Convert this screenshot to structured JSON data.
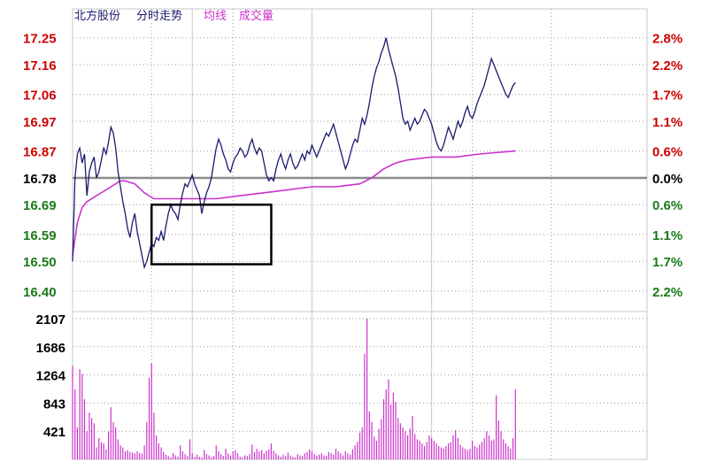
{
  "title": {
    "stock": "北方股份",
    "chart": "分时走势",
    "avg_legend": "均线",
    "vol_legend": "成交量"
  },
  "colors": {
    "background": "#ffffff",
    "price_line": "#1a1a6e",
    "avg_line": "#cc33cc",
    "volume_bar": "#cc33cc",
    "up_text": "#cc0000",
    "down_text": "#1a7a1a",
    "flat_text": "#000000",
    "grid_solid": "#c8c8c8",
    "grid_dotted": "#999999",
    "axis": "#000000",
    "highlight_box": "#000000"
  },
  "chart_data": {
    "type": "line",
    "x_range": [
      0,
      240
    ],
    "price_axis": {
      "ylim": [
        16.355,
        17.27
      ],
      "ticks": [
        {
          "label": "17.25",
          "value": 17.25,
          "tone": "up"
        },
        {
          "label": "17.16",
          "value": 17.16,
          "tone": "up"
        },
        {
          "label": "17.06",
          "value": 17.06,
          "tone": "up"
        },
        {
          "label": "16.97",
          "value": 16.97,
          "tone": "up"
        },
        {
          "label": "16.87",
          "value": 16.87,
          "tone": "up"
        },
        {
          "label": "16.78",
          "value": 16.78,
          "tone": "flat"
        },
        {
          "label": "16.69",
          "value": 16.69,
          "tone": "down"
        },
        {
          "label": "16.59",
          "value": 16.59,
          "tone": "down"
        },
        {
          "label": "16.50",
          "value": 16.5,
          "tone": "down"
        },
        {
          "label": "16.40",
          "value": 16.4,
          "tone": "down"
        }
      ],
      "pct_ticks": [
        {
          "label": "2.8%",
          "value": 17.25,
          "tone": "up"
        },
        {
          "label": "2.2%",
          "value": 17.16,
          "tone": "up"
        },
        {
          "label": "1.7%",
          "value": 17.06,
          "tone": "up"
        },
        {
          "label": "1.1%",
          "value": 16.97,
          "tone": "up"
        },
        {
          "label": "0.6%",
          "value": 16.87,
          "tone": "up"
        },
        {
          "label": "0.0%",
          "value": 16.78,
          "tone": "flat"
        },
        {
          "label": "0.6%",
          "value": 16.69,
          "tone": "down"
        },
        {
          "label": "1.1%",
          "value": 16.59,
          "tone": "down"
        },
        {
          "label": "1.7%",
          "value": 16.5,
          "tone": "down"
        },
        {
          "label": "2.2%",
          "value": 16.4,
          "tone": "down"
        }
      ],
      "baseline": 16.78
    },
    "volume_axis": {
      "ylim": [
        0,
        2107
      ],
      "ticks": [
        {
          "label": "2107",
          "value": 2107
        },
        {
          "label": "1686",
          "value": 1686
        },
        {
          "label": "1264",
          "value": 1264
        },
        {
          "label": "843",
          "value": 843
        },
        {
          "label": "421",
          "value": 421
        }
      ]
    },
    "price_series": {
      "name": "",
      "points": [
        [
          0,
          16.5
        ],
        [
          1,
          16.78
        ],
        [
          2,
          16.86
        ],
        [
          3,
          16.88
        ],
        [
          4,
          16.83
        ],
        [
          5,
          16.86
        ],
        [
          6,
          16.72
        ],
        [
          7,
          16.8
        ],
        [
          8,
          16.83
        ],
        [
          9,
          16.85
        ],
        [
          10,
          16.78
        ],
        [
          11,
          16.8
        ],
        [
          12,
          16.84
        ],
        [
          13,
          16.88
        ],
        [
          14,
          16.86
        ],
        [
          15,
          16.9
        ],
        [
          16,
          16.95
        ],
        [
          17,
          16.93
        ],
        [
          18,
          16.88
        ],
        [
          19,
          16.8
        ],
        [
          20,
          16.75
        ],
        [
          21,
          16.7
        ],
        [
          22,
          16.66
        ],
        [
          23,
          16.61
        ],
        [
          24,
          16.58
        ],
        [
          25,
          16.63
        ],
        [
          26,
          16.66
        ],
        [
          27,
          16.6
        ],
        [
          28,
          16.56
        ],
        [
          29,
          16.52
        ],
        [
          30,
          16.48
        ],
        [
          31,
          16.5
        ],
        [
          32,
          16.53
        ],
        [
          33,
          16.56
        ],
        [
          34,
          16.55
        ],
        [
          35,
          16.58
        ],
        [
          36,
          16.57
        ],
        [
          37,
          16.6
        ],
        [
          38,
          16.57
        ],
        [
          39,
          16.62
        ],
        [
          40,
          16.66
        ],
        [
          41,
          16.69
        ],
        [
          42,
          16.67
        ],
        [
          43,
          16.66
        ],
        [
          44,
          16.64
        ],
        [
          45,
          16.69
        ],
        [
          46,
          16.73
        ],
        [
          47,
          16.76
        ],
        [
          48,
          16.75
        ],
        [
          49,
          16.77
        ],
        [
          50,
          16.79
        ],
        [
          51,
          16.76
        ],
        [
          52,
          16.74
        ],
        [
          53,
          16.72
        ],
        [
          54,
          16.66
        ],
        [
          55,
          16.7
        ],
        [
          56,
          16.73
        ],
        [
          57,
          16.75
        ],
        [
          58,
          16.78
        ],
        [
          59,
          16.83
        ],
        [
          60,
          16.88
        ],
        [
          61,
          16.91
        ],
        [
          62,
          16.89
        ],
        [
          63,
          16.86
        ],
        [
          64,
          16.84
        ],
        [
          65,
          16.81
        ],
        [
          66,
          16.8
        ],
        [
          67,
          16.83
        ],
        [
          68,
          16.85
        ],
        [
          69,
          16.86
        ],
        [
          70,
          16.88
        ],
        [
          71,
          16.87
        ],
        [
          72,
          16.85
        ],
        [
          73,
          16.86
        ],
        [
          74,
          16.89
        ],
        [
          75,
          16.91
        ],
        [
          76,
          16.88
        ],
        [
          77,
          16.86
        ],
        [
          78,
          16.88
        ],
        [
          79,
          16.87
        ],
        [
          80,
          16.83
        ],
        [
          81,
          16.79
        ],
        [
          82,
          16.77
        ],
        [
          83,
          16.78
        ],
        [
          84,
          16.77
        ],
        [
          85,
          16.81
        ],
        [
          86,
          16.84
        ],
        [
          87,
          16.86
        ],
        [
          88,
          16.83
        ],
        [
          89,
          16.81
        ],
        [
          90,
          16.84
        ],
        [
          91,
          16.86
        ],
        [
          92,
          16.83
        ],
        [
          93,
          16.81
        ],
        [
          94,
          16.82
        ],
        [
          95,
          16.84
        ],
        [
          96,
          16.86
        ],
        [
          97,
          16.84
        ],
        [
          98,
          16.87
        ],
        [
          99,
          16.86
        ],
        [
          100,
          16.89
        ],
        [
          101,
          16.87
        ],
        [
          102,
          16.85
        ],
        [
          103,
          16.87
        ],
        [
          104,
          16.89
        ],
        [
          105,
          16.91
        ],
        [
          106,
          16.93
        ],
        [
          107,
          16.92
        ],
        [
          108,
          16.94
        ],
        [
          109,
          16.96
        ],
        [
          110,
          16.93
        ],
        [
          111,
          16.9
        ],
        [
          112,
          16.87
        ],
        [
          113,
          16.84
        ],
        [
          114,
          16.81
        ],
        [
          115,
          16.83
        ],
        [
          116,
          16.86
        ],
        [
          117,
          16.89
        ],
        [
          118,
          16.91
        ],
        [
          119,
          16.9
        ],
        [
          120,
          16.94
        ],
        [
          121,
          16.98
        ],
        [
          122,
          16.96
        ],
        [
          123,
          16.99
        ],
        [
          124,
          17.03
        ],
        [
          125,
          17.08
        ],
        [
          126,
          17.12
        ],
        [
          127,
          17.15
        ],
        [
          128,
          17.17
        ],
        [
          129,
          17.2
        ],
        [
          130,
          17.22
        ],
        [
          131,
          17.25
        ],
        [
          132,
          17.21
        ],
        [
          133,
          17.18
        ],
        [
          134,
          17.15
        ],
        [
          135,
          17.12
        ],
        [
          136,
          17.08
        ],
        [
          137,
          17.03
        ],
        [
          138,
          16.98
        ],
        [
          139,
          16.96
        ],
        [
          140,
          16.97
        ],
        [
          141,
          16.94
        ],
        [
          142,
          16.96
        ],
        [
          143,
          16.98
        ],
        [
          144,
          16.96
        ],
        [
          145,
          16.97
        ],
        [
          146,
          16.99
        ],
        [
          147,
          17.01
        ],
        [
          148,
          17.0
        ],
        [
          149,
          16.98
        ],
        [
          150,
          16.96
        ],
        [
          151,
          16.93
        ],
        [
          152,
          16.9
        ],
        [
          153,
          16.88
        ],
        [
          154,
          16.87
        ],
        [
          155,
          16.89
        ],
        [
          156,
          16.92
        ],
        [
          157,
          16.95
        ],
        [
          158,
          16.93
        ],
        [
          159,
          16.91
        ],
        [
          160,
          16.94
        ],
        [
          161,
          16.97
        ],
        [
          162,
          16.95
        ],
        [
          163,
          16.97
        ],
        [
          164,
          17.0
        ],
        [
          165,
          17.02
        ],
        [
          166,
          16.99
        ],
        [
          167,
          16.98
        ],
        [
          168,
          17.0
        ],
        [
          169,
          17.03
        ],
        [
          170,
          17.05
        ],
        [
          171,
          17.07
        ],
        [
          172,
          17.09
        ],
        [
          173,
          17.12
        ],
        [
          174,
          17.15
        ],
        [
          175,
          17.18
        ],
        [
          176,
          17.16
        ],
        [
          177,
          17.14
        ],
        [
          178,
          17.12
        ],
        [
          179,
          17.1
        ],
        [
          180,
          17.08
        ],
        [
          181,
          17.06
        ],
        [
          182,
          17.05
        ],
        [
          183,
          17.07
        ],
        [
          184,
          17.09
        ],
        [
          185,
          17.1
        ]
      ]
    },
    "avg_series": {
      "name": "均线",
      "points": [
        [
          0,
          16.52
        ],
        [
          2,
          16.63
        ],
        [
          4,
          16.68
        ],
        [
          6,
          16.7
        ],
        [
          10,
          16.72
        ],
        [
          14,
          16.74
        ],
        [
          18,
          16.76
        ],
        [
          20,
          16.77
        ],
        [
          22,
          16.77
        ],
        [
          26,
          16.76
        ],
        [
          30,
          16.73
        ],
        [
          34,
          16.71
        ],
        [
          36,
          16.71
        ],
        [
          40,
          16.71
        ],
        [
          50,
          16.71
        ],
        [
          60,
          16.71
        ],
        [
          70,
          16.72
        ],
        [
          80,
          16.73
        ],
        [
          90,
          16.74
        ],
        [
          100,
          16.75
        ],
        [
          110,
          16.75
        ],
        [
          120,
          16.76
        ],
        [
          125,
          16.78
        ],
        [
          130,
          16.81
        ],
        [
          135,
          16.83
        ],
        [
          140,
          16.84
        ],
        [
          150,
          16.85
        ],
        [
          160,
          16.85
        ],
        [
          170,
          16.86
        ],
        [
          185,
          16.87
        ]
      ]
    },
    "volume_series": {
      "name": "成交量",
      "values": [
        1400,
        1050,
        480,
        1350,
        1280,
        900,
        420,
        700,
        620,
        540,
        180,
        320,
        260,
        240,
        150,
        420,
        780,
        560,
        480,
        300,
        210,
        180,
        120,
        140,
        110,
        100,
        90,
        120,
        95,
        85,
        210,
        560,
        1220,
        1440,
        700,
        360,
        240,
        180,
        110,
        70,
        50,
        30,
        90,
        60,
        40,
        210,
        120,
        80,
        50,
        300,
        90,
        40,
        70,
        40,
        30,
        140,
        80,
        60,
        30,
        50,
        210,
        120,
        80,
        50,
        160,
        90,
        60,
        120,
        140,
        90,
        40,
        30,
        60,
        50,
        80,
        220,
        110,
        160,
        120,
        140,
        90,
        130,
        150,
        240,
        130,
        90,
        60,
        40,
        70,
        50,
        100,
        60,
        40,
        30,
        80,
        60,
        50,
        90,
        110,
        150,
        120,
        80,
        60,
        70,
        90,
        60,
        50,
        110,
        90,
        70,
        160,
        120,
        90,
        60,
        120,
        90,
        70,
        150,
        210,
        260,
        400,
        480,
        1580,
        2107,
        720,
        560,
        340,
        280,
        460,
        600,
        900,
        1050,
        1200,
        820,
        1000,
        860,
        620,
        540,
        480,
        420,
        360,
        460,
        650,
        380,
        300,
        280,
        240,
        200,
        260,
        360,
        320,
        280,
        240,
        200,
        180,
        160,
        200,
        240,
        260,
        360,
        440,
        320,
        220,
        180,
        160,
        140,
        160,
        280,
        200,
        180,
        220,
        260,
        320,
        420,
        360,
        280,
        300,
        960,
        580,
        420,
        300,
        240,
        200,
        160,
        320,
        1050
      ]
    },
    "highlight_box": {
      "x": [
        33,
        83
      ],
      "y": [
        16.49,
        16.69
      ]
    },
    "dotted_gridlines": {
      "x": [
        33,
        67,
        167,
        200
      ],
      "price_values": [
        17.25,
        17.16,
        17.06,
        16.97,
        16.87,
        16.69,
        16.59,
        16.5,
        16.4
      ]
    },
    "solid_gridlines": {
      "x": [
        0,
        50,
        100,
        150,
        240
      ]
    }
  }
}
